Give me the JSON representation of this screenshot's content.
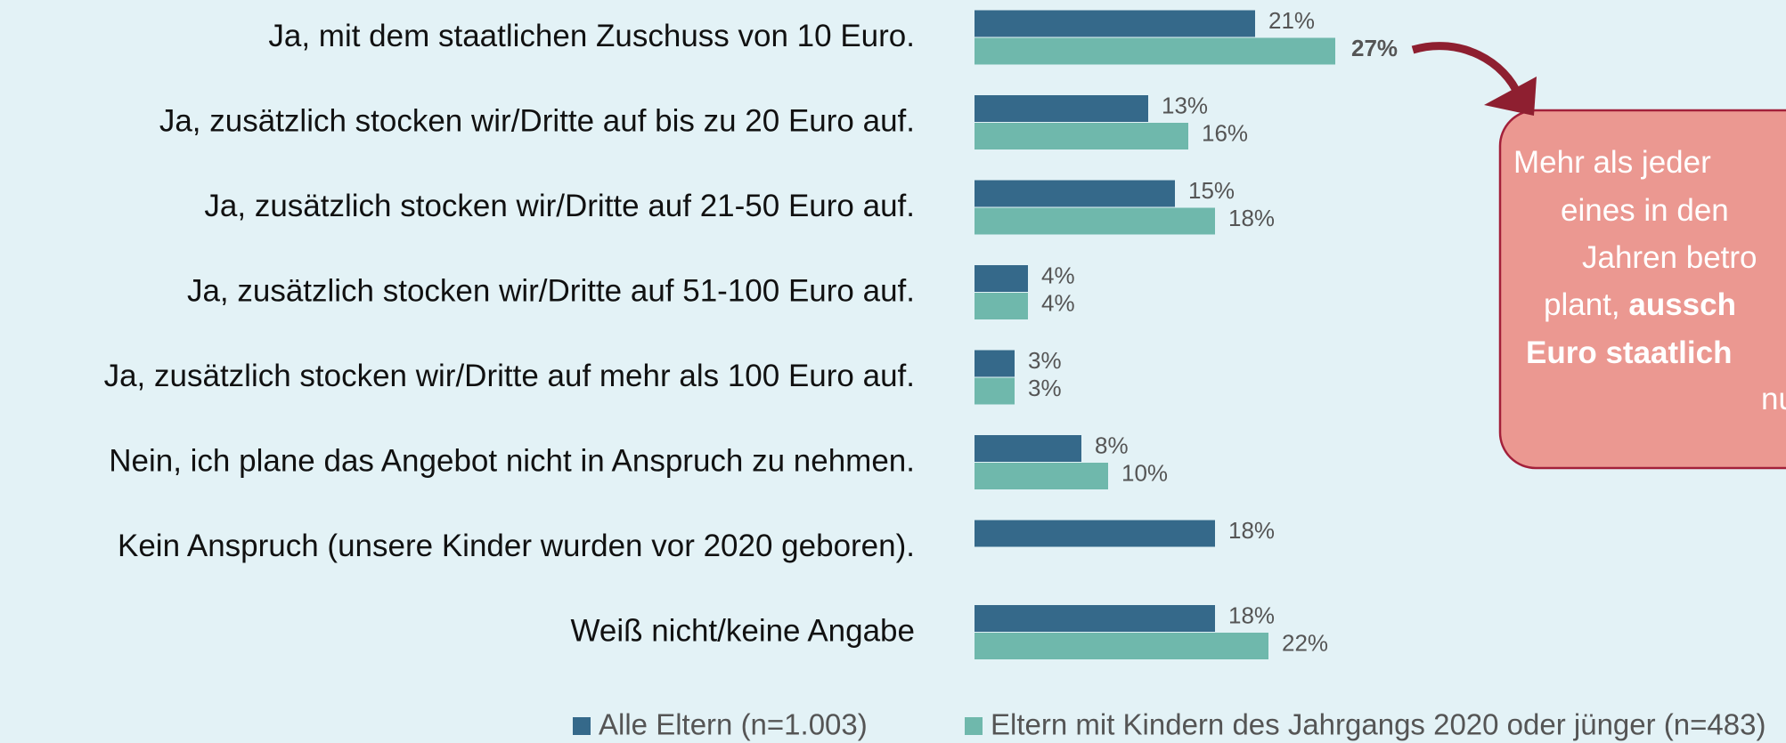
{
  "chart_data": {
    "type": "hbar",
    "categories": [
      "Ja, mit dem staatlichen Zuschuss von 10 Euro.",
      "Ja, zusätzlich stocken wir/Dritte auf bis zu 20 Euro auf.",
      "Ja, zusätzlich stocken wir/Dritte auf 21-50 Euro auf.",
      "Ja, zusätzlich stocken wir/Dritte auf 51-100 Euro auf.",
      "Ja, zusätzlich stocken wir/Dritte auf mehr als 100 Euro auf.",
      "Nein, ich plane das Angebot nicht in Anspruch zu nehmen.",
      "Kein Anspruch (unsere Kinder wurden vor 2020 geboren).",
      "Weiß nicht/keine Angabe"
    ],
    "series": [
      {
        "name": "Alle Eltern (n=1.003)",
        "color": "#35698a",
        "values": [
          21,
          13,
          15,
          4,
          3,
          8,
          18,
          18
        ],
        "value_labels": [
          "21%",
          "13%",
          "15%",
          "4%",
          "3%",
          "8%",
          "18%",
          "18%"
        ]
      },
      {
        "name": "Eltern mit Kindern des Jahrgangs 2020 oder jünger (n=483)",
        "color": "#6fb8ac",
        "values": [
          27,
          16,
          18,
          4,
          3,
          10,
          null,
          22
        ],
        "value_labels": [
          "27%",
          "16%",
          "18%",
          "4%",
          "3%",
          "10%",
          null,
          "22%"
        ]
      }
    ],
    "legend": "bottom",
    "annotation": {
      "lines": [
        {
          "text": "Mehr als jeder"
        },
        {
          "text": "eines in den"
        },
        {
          "text": "Jahren betro"
        },
        {
          "text": "plant, ",
          "bold": "aussch"
        },
        {
          "bold": "Euro staatlich"
        },
        {
          "text": "nu"
        }
      ]
    }
  }
}
